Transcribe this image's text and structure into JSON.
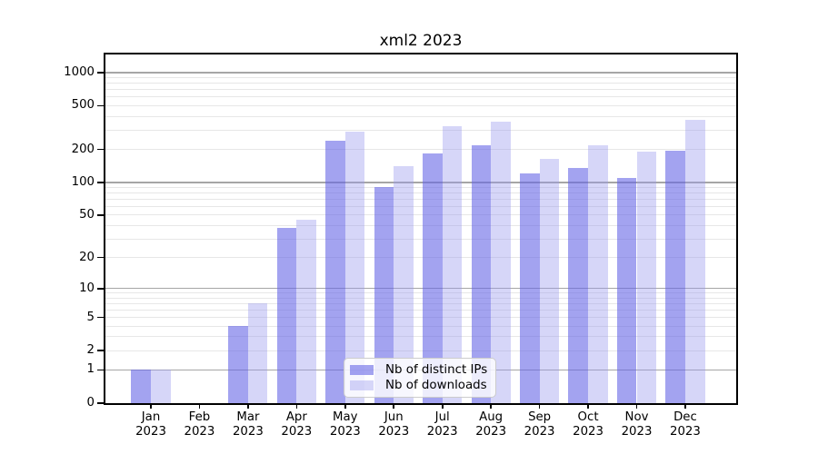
{
  "chart_data": {
    "type": "bar",
    "title": "xml2 2023",
    "x_months": [
      "Jan",
      "Feb",
      "Mar",
      "Apr",
      "May",
      "Jun",
      "Jul",
      "Aug",
      "Sep",
      "Oct",
      "Nov",
      "Dec"
    ],
    "x_year_label": "2023",
    "series": [
      {
        "name": "Nb of distinct IPs",
        "color": "rgba(102,102,230,0.60)",
        "color_on_white": "#a3a3f0",
        "values": [
          1,
          0,
          4,
          38,
          240,
          90,
          185,
          220,
          120,
          135,
          110,
          195
        ]
      },
      {
        "name": "Nb of downloads",
        "color": "rgba(153,153,238,0.40)",
        "color_on_white": "#d6d6f8",
        "values": [
          1,
          0,
          7,
          45,
          290,
          140,
          325,
          360,
          165,
          220,
          190,
          375
        ]
      }
    ],
    "y_scale": "log10(1+x)",
    "ylim": [
      0,
      1490
    ],
    "y_tick_labels": [
      0,
      1,
      2,
      5,
      10,
      20,
      50,
      100,
      200,
      500,
      1000
    ],
    "y_major_gridlines": [
      1,
      10,
      100,
      1000
    ],
    "y_minor_gridlines": [
      2,
      3,
      4,
      5,
      6,
      7,
      8,
      9,
      20,
      30,
      40,
      50,
      60,
      70,
      80,
      90,
      200,
      300,
      400,
      500,
      600,
      700,
      800,
      900
    ],
    "legend_position": "lower-center-inside",
    "grid": "on",
    "colors": {
      "major_grid": "#a6a6a6",
      "minor_grid": "#e7e7e7",
      "axis": "#000000",
      "background": "#ffffff"
    }
  }
}
